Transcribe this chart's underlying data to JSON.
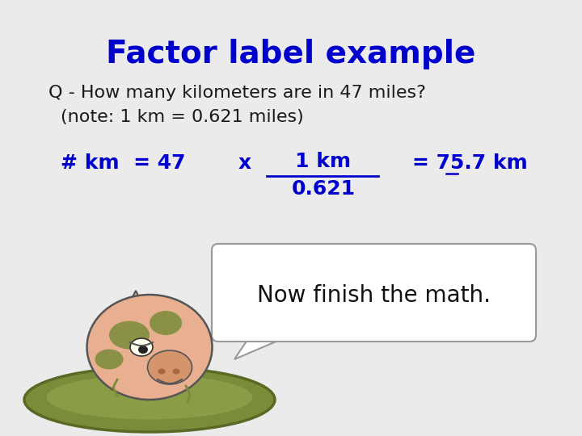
{
  "bg_color": "#ebebeb",
  "title": "Factor label example",
  "title_color": "#0000cc",
  "title_fontsize": 28,
  "question_line1": "Q - How many kilometers are in 47 miles?",
  "question_line2": "(note: 1 km = 0.621 miles)",
  "question_color": "#1a1a1a",
  "question_fontsize": 16,
  "eq_color": "#0000cc",
  "eq_fontsize": 18,
  "eq_left": "# km  = 47",
  "eq_x": "x",
  "eq_numerator": "1 km",
  "eq_denominator": "0.621",
  "eq_result": "= 75.7 km",
  "speech_text": "Now finish the math.",
  "speech_fontsize": 20,
  "speech_color": "#111111"
}
